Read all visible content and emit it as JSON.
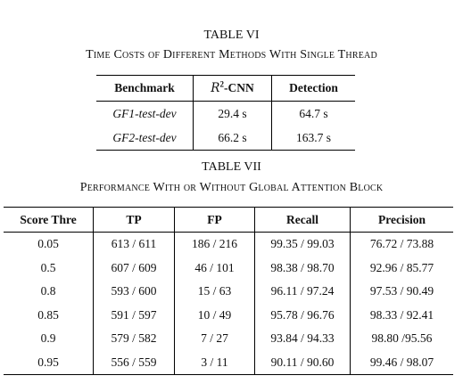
{
  "table6": {
    "label": "TABLE VI",
    "title": "Time Costs of Different Methods With Single Thread",
    "headers": {
      "benchmark": "Benchmark",
      "method_symbol": "R",
      "method_sup": "2",
      "method_suffix": "-CNN",
      "detection": "Detection"
    },
    "rows": [
      {
        "benchmark": "GF1-test-dev",
        "r2cnn": "29.4 s",
        "detection": "64.7 s"
      },
      {
        "benchmark": "GF2-test-dev",
        "r2cnn": "66.2 s",
        "detection": "163.7 s"
      }
    ]
  },
  "table7": {
    "label": "TABLE VII",
    "title": "Performance With or Without Global Attention Block",
    "headers": [
      "Score Thre",
      "TP",
      "FP",
      "Recall",
      "Precision"
    ],
    "rows": [
      [
        "0.05",
        "613 / 611",
        "186 / 216",
        "99.35 / 99.03",
        "76.72 / 73.88"
      ],
      [
        "0.5",
        "607 / 609",
        "46 / 101",
        "98.38 / 98.70",
        "92.96 / 85.77"
      ],
      [
        "0.8",
        "593 / 600",
        "15 / 63",
        "96.11 / 97.24",
        "97.53 / 90.49"
      ],
      [
        "0.85",
        "591 / 597",
        "10 / 49",
        "95.78 / 96.76",
        "98.33 / 92.41"
      ],
      [
        "0.9",
        "579 / 582",
        "7 / 27",
        "93.84 / 94.33",
        "98.80 /95.56"
      ],
      [
        "0.95",
        "556 / 559",
        "3 / 11",
        "90.11 / 90.60",
        "99.46 / 98.07"
      ]
    ]
  }
}
